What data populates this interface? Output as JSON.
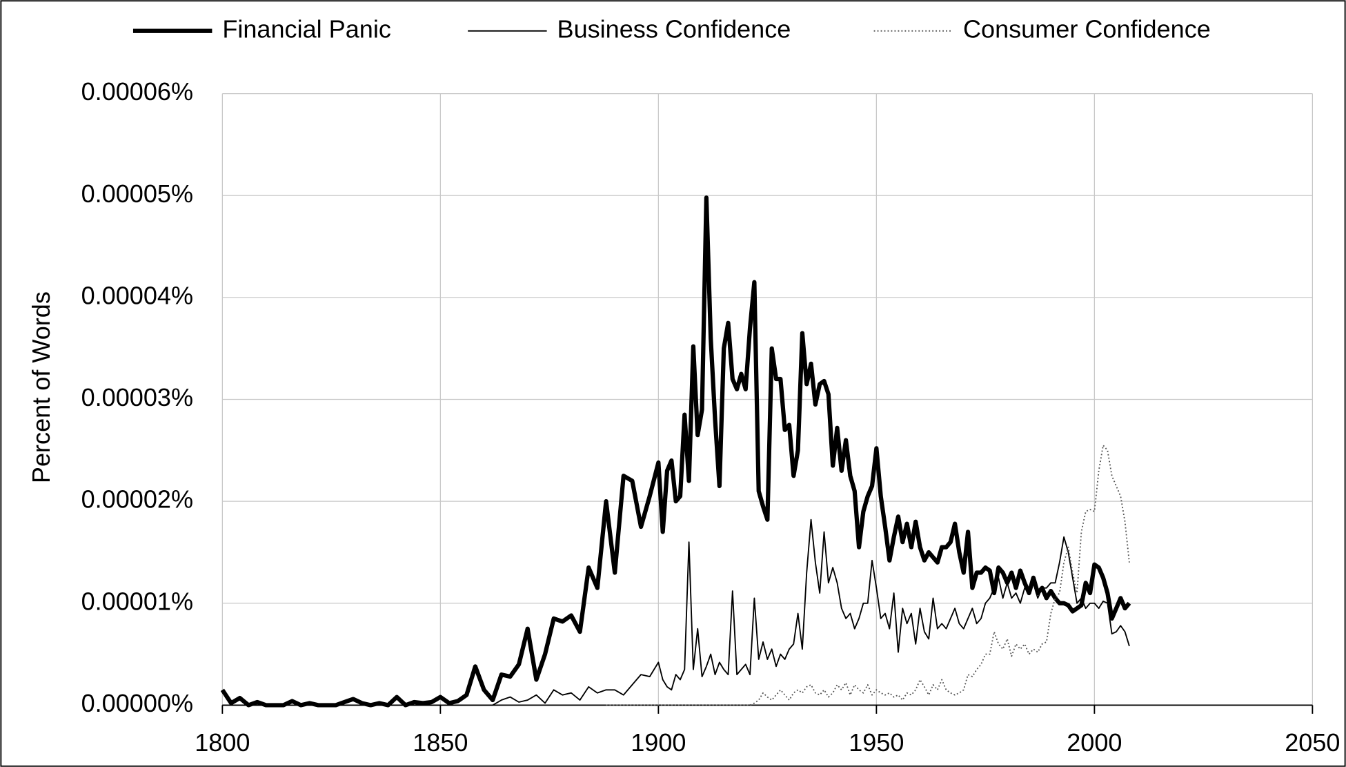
{
  "chart_data": {
    "type": "line",
    "y_label": "Percent of Words",
    "xlim": [
      1800,
      2050
    ],
    "xticks": [
      1800,
      1850,
      1900,
      1950,
      2000,
      2050
    ],
    "ylim": [
      0,
      6e-05
    ],
    "yticks": [
      {
        "value": 0,
        "label": "0.00000%"
      },
      {
        "value": 1e-05,
        "label": "0.00001%"
      },
      {
        "value": 2e-05,
        "label": "0.00002%"
      },
      {
        "value": 3e-05,
        "label": "0.00003%"
      },
      {
        "value": 4e-05,
        "label": "0.00004%"
      },
      {
        "value": 5e-05,
        "label": "0.00005%"
      },
      {
        "value": 6e-05,
        "label": "0.00006%"
      }
    ],
    "grid": true,
    "legend": "top",
    "x": [
      1800,
      1802,
      1804,
      1806,
      1808,
      1810,
      1812,
      1814,
      1816,
      1818,
      1820,
      1822,
      1824,
      1826,
      1828,
      1830,
      1832,
      1834,
      1836,
      1838,
      1840,
      1842,
      1844,
      1846,
      1848,
      1850,
      1852,
      1854,
      1856,
      1858,
      1860,
      1862,
      1864,
      1866,
      1868,
      1870,
      1872,
      1874,
      1876,
      1878,
      1880,
      1882,
      1884,
      1886,
      1888,
      1890,
      1892,
      1894,
      1896,
      1898,
      1900,
      1901,
      1902,
      1903,
      1904,
      1905,
      1906,
      1907,
      1908,
      1909,
      1910,
      1911,
      1912,
      1913,
      1914,
      1915,
      1916,
      1917,
      1918,
      1919,
      1920,
      1921,
      1922,
      1923,
      1924,
      1925,
      1926,
      1927,
      1928,
      1929,
      1930,
      1931,
      1932,
      1933,
      1934,
      1935,
      1936,
      1937,
      1938,
      1939,
      1940,
      1941,
      1942,
      1943,
      1944,
      1945,
      1946,
      1947,
      1948,
      1949,
      1950,
      1951,
      1952,
      1953,
      1954,
      1955,
      1956,
      1957,
      1958,
      1959,
      1960,
      1961,
      1962,
      1963,
      1964,
      1965,
      1966,
      1967,
      1968,
      1969,
      1970,
      1971,
      1972,
      1973,
      1974,
      1975,
      1976,
      1977,
      1978,
      1979,
      1980,
      1981,
      1982,
      1983,
      1984,
      1985,
      1986,
      1987,
      1988,
      1989,
      1990,
      1991,
      1992,
      1993,
      1994,
      1995,
      1996,
      1997,
      1998,
      1999,
      2000,
      2001,
      2002,
      2003,
      2004,
      2005,
      2006,
      2007,
      2008
    ],
    "series": [
      {
        "name": "Financial Panic",
        "color": "#000000",
        "style": "thick",
        "values": [
          1.5e-06,
          2e-07,
          7e-07,
          0,
          3e-07,
          0,
          0,
          0,
          4e-07,
          0,
          2e-07,
          0,
          0,
          0,
          3e-07,
          6e-07,
          2e-07,
          0,
          2e-07,
          0,
          8e-07,
          0,
          3e-07,
          2e-07,
          3e-07,
          8e-07,
          2e-07,
          4e-07,
          1e-06,
          3.8e-06,
          1.5e-06,
          5e-07,
          3e-06,
          2.8e-06,
          4e-06,
          7.5e-06,
          2.5e-06,
          5e-06,
          8.5e-06,
          8.2e-06,
          8.8e-06,
          7.2e-06,
          1.35e-05,
          1.15e-05,
          2e-05,
          1.3e-05,
          2.25e-05,
          2.2e-05,
          1.75e-05,
          2.05e-05,
          2.38e-05,
          1.7e-05,
          2.3e-05,
          2.4e-05,
          2e-05,
          2.05e-05,
          2.85e-05,
          2.2e-05,
          3.52e-05,
          2.65e-05,
          2.9e-05,
          4.98e-05,
          3.6e-05,
          2.8e-05,
          2.15e-05,
          3.5e-05,
          3.75e-05,
          3.2e-05,
          3.1e-05,
          3.25e-05,
          3.1e-05,
          3.7e-05,
          4.15e-05,
          2.1e-05,
          1.95e-05,
          1.82e-05,
          3.5e-05,
          3.2e-05,
          3.2e-05,
          2.7e-05,
          2.75e-05,
          2.25e-05,
          2.5e-05,
          3.65e-05,
          3.15e-05,
          3.35e-05,
          2.95e-05,
          3.15e-05,
          3.18e-05,
          3.05e-05,
          2.35e-05,
          2.72e-05,
          2.3e-05,
          2.6e-05,
          2.25e-05,
          2.1e-05,
          1.55e-05,
          1.9e-05,
          2.05e-05,
          2.15e-05,
          2.52e-05,
          2.05e-05,
          1.75e-05,
          1.42e-05,
          1.65e-05,
          1.85e-05,
          1.6e-05,
          1.78e-05,
          1.55e-05,
          1.8e-05,
          1.55e-05,
          1.42e-05,
          1.5e-05,
          1.45e-05,
          1.4e-05,
          1.55e-05,
          1.55e-05,
          1.6e-05,
          1.78e-05,
          1.5e-05,
          1.3e-05,
          1.7e-05,
          1.15e-05,
          1.3e-05,
          1.3e-05,
          1.35e-05,
          1.32e-05,
          1.1e-05,
          1.35e-05,
          1.3e-05,
          1.2e-05,
          1.3e-05,
          1.15e-05,
          1.32e-05,
          1.2e-05,
          1.1e-05,
          1.25e-05,
          1.1e-05,
          1.15e-05,
          1.05e-05,
          1.12e-05,
          1.05e-05,
          1e-05,
          1e-05,
          9.8e-06,
          9.2e-06,
          9.5e-06,
          9.8e-06,
          1.2e-05,
          1.1e-05,
          1.38e-05,
          1.35e-05,
          1.25e-05,
          1.1e-05,
          8.5e-06,
          9.5e-06,
          1.05e-05,
          9.5e-06,
          1e-05
        ]
      },
      {
        "name": "Business Confidence",
        "color": "#000000",
        "style": "thin",
        "values": [
          0,
          0,
          0,
          0,
          0,
          0,
          0,
          0,
          0,
          0,
          0,
          0,
          0,
          0,
          0,
          0,
          0,
          0,
          0,
          0,
          0,
          0,
          0,
          0,
          0,
          0,
          0,
          0,
          0,
          0,
          0,
          0,
          5e-07,
          8e-07,
          3e-07,
          5e-07,
          1e-06,
          2e-07,
          1.5e-06,
          1e-06,
          1.2e-06,
          5e-07,
          1.8e-06,
          1.2e-06,
          1.5e-06,
          1.5e-06,
          1e-06,
          2e-06,
          3e-06,
          2.8e-06,
          4.2e-06,
          2.5e-06,
          1.8e-06,
          1.5e-06,
          3e-06,
          2.5e-06,
          3.5e-06,
          1.6e-05,
          3.5e-06,
          7.5e-06,
          2.8e-06,
          3.8e-06,
          5e-06,
          3e-06,
          4.2e-06,
          3.5e-06,
          3e-06,
          1.12e-05,
          3e-06,
          3.5e-06,
          4e-06,
          3e-06,
          1.05e-05,
          4.5e-06,
          6.2e-06,
          4.5e-06,
          5.5e-06,
          3.8e-06,
          5e-06,
          4.5e-06,
          5.5e-06,
          6e-06,
          9e-06,
          5.5e-06,
          1.3e-05,
          1.82e-05,
          1.4e-05,
          1.1e-05,
          1.7e-05,
          1.2e-05,
          1.35e-05,
          1.2e-05,
          9.5e-06,
          8.5e-06,
          9e-06,
          7.5e-06,
          8.5e-06,
          1e-05,
          1e-05,
          1.42e-05,
          1.15e-05,
          8.5e-06,
          9e-06,
          7.5e-06,
          1.1e-05,
          5.2e-06,
          9.5e-06,
          8e-06,
          9e-06,
          6e-06,
          9.5e-06,
          7.2e-06,
          6.5e-06,
          1.05e-05,
          7.5e-06,
          8e-06,
          7.5e-06,
          8.5e-06,
          9.5e-06,
          8e-06,
          7.5e-06,
          8.5e-06,
          9.5e-06,
          8e-06,
          8.5e-06,
          1e-05,
          1.05e-05,
          1.15e-05,
          1.25e-05,
          1.05e-05,
          1.2e-05,
          1.05e-05,
          1.1e-05,
          1e-05,
          1.15e-05,
          1.1e-05,
          1.2e-05,
          1.05e-05,
          1.15e-05,
          1.15e-05,
          1.2e-05,
          1.2e-05,
          1.4e-05,
          1.65e-05,
          1.5e-05,
          1.25e-05,
          1e-05,
          1.05e-05,
          9.5e-06,
          1e-05,
          1e-05,
          9.5e-06,
          1.02e-05,
          1e-05,
          7e-06,
          7.2e-06,
          7.8e-06,
          7.2e-06,
          5.8e-06
        ]
      },
      {
        "name": "Consumer Confidence",
        "color": "#555555",
        "style": "dotted",
        "values": [
          null,
          null,
          null,
          null,
          null,
          null,
          null,
          null,
          null,
          null,
          null,
          null,
          null,
          null,
          null,
          null,
          null,
          null,
          null,
          null,
          null,
          null,
          null,
          null,
          null,
          null,
          null,
          null,
          null,
          null,
          null,
          null,
          null,
          null,
          null,
          null,
          null,
          null,
          null,
          null,
          null,
          null,
          null,
          null,
          0,
          0,
          0,
          0,
          0,
          0,
          0,
          0,
          0,
          0,
          0,
          0,
          0,
          0,
          0,
          0,
          0,
          0,
          0,
          0,
          0,
          0,
          0,
          0,
          0,
          0,
          0,
          0,
          2e-07,
          5e-07,
          1.2e-06,
          8e-07,
          5e-07,
          1e-06,
          1.5e-06,
          1e-06,
          5e-07,
          1.2e-06,
          1.5e-06,
          1.2e-06,
          1.8e-06,
          2e-06,
          1.2e-06,
          1e-06,
          1.5e-06,
          8e-07,
          1.2e-06,
          2e-06,
          1.5e-06,
          2.2e-06,
          1e-06,
          2e-06,
          1.5e-06,
          1.2e-06,
          2e-06,
          1e-06,
          1.5e-06,
          1.2e-06,
          1e-06,
          1.2e-06,
          8e-07,
          1e-06,
          5e-07,
          1.2e-06,
          1e-06,
          1.5e-06,
          2.5e-06,
          1.8e-06,
          1e-06,
          2e-06,
          1.5e-06,
          2.5e-06,
          1.5e-06,
          1.2e-06,
          1e-06,
          1.2e-06,
          1.5e-06,
          3e-06,
          2.8e-06,
          3.5e-06,
          4e-06,
          5e-06,
          5e-06,
          7.2e-06,
          6e-06,
          5.5e-06,
          6.5e-06,
          4.8e-06,
          6e-06,
          5.5e-06,
          6e-06,
          5e-06,
          5.5e-06,
          5.2e-06,
          6e-06,
          6.2e-06,
          9e-06,
          1.05e-05,
          1.1e-05,
          1.4e-05,
          1.55e-05,
          1.3e-05,
          1.1e-05,
          1.7e-05,
          1.9e-05,
          1.92e-05,
          1.9e-05,
          2.3e-05,
          2.55e-05,
          2.5e-05,
          2.25e-05,
          2.15e-05,
          2.05e-05,
          1.8e-05,
          1.4e-05
        ]
      }
    ]
  }
}
